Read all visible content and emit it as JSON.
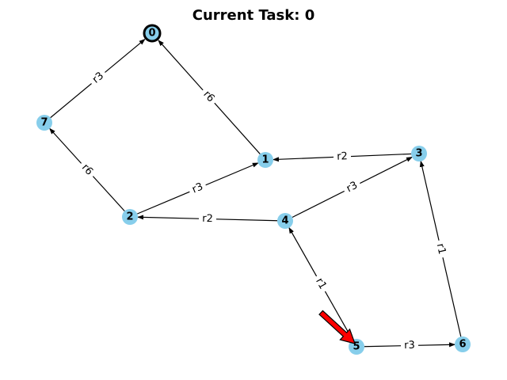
{
  "title": "Current Task: 0",
  "colors": {
    "node_fill": "#87CEEB",
    "current_node_stroke": "#000000",
    "edge": "#000000",
    "agent_arrow": "#FF0000"
  },
  "graph": {
    "current_node": "0",
    "agent_node": "5",
    "nodes": [
      {
        "id": "0",
        "label": "0"
      },
      {
        "id": "1",
        "label": "1"
      },
      {
        "id": "2",
        "label": "2"
      },
      {
        "id": "3",
        "label": "3"
      },
      {
        "id": "4",
        "label": "4"
      },
      {
        "id": "5",
        "label": "5"
      },
      {
        "id": "6",
        "label": "6"
      },
      {
        "id": "7",
        "label": "7"
      }
    ],
    "edges": [
      {
        "from": "7",
        "to": "0",
        "label": "r3"
      },
      {
        "from": "1",
        "to": "0",
        "label": "r6"
      },
      {
        "from": "2",
        "to": "7",
        "label": "r6"
      },
      {
        "from": "2",
        "to": "1",
        "label": "r3"
      },
      {
        "from": "3",
        "to": "1",
        "label": "r2"
      },
      {
        "from": "4",
        "to": "3",
        "label": "r3"
      },
      {
        "from": "4",
        "to": "2",
        "label": "r2"
      },
      {
        "from": "5",
        "to": "4",
        "label": "r1"
      },
      {
        "from": "5",
        "to": "6",
        "label": "r3"
      },
      {
        "from": "6",
        "to": "3",
        "label": "r1"
      }
    ]
  }
}
